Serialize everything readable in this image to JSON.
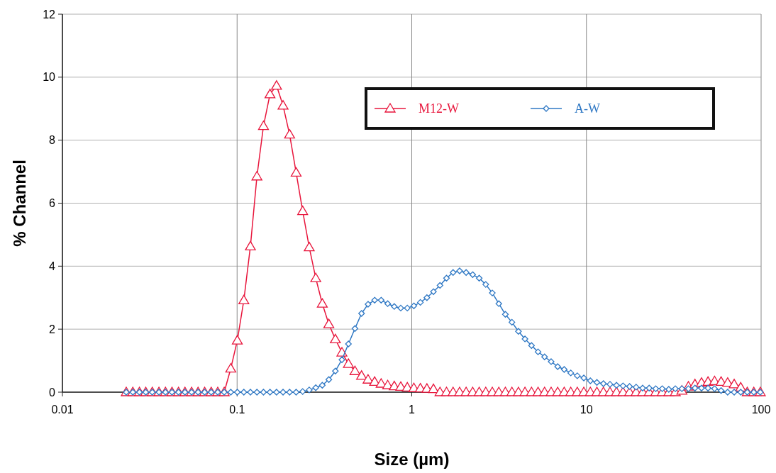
{
  "chart_data": {
    "type": "line",
    "xlabel": "Size (µm)",
    "ylabel": "% Channel",
    "x": [
      0.0232,
      0.0253,
      0.0276,
      0.03,
      0.0327,
      0.0357,
      0.0389,
      0.0424,
      0.0462,
      0.0503,
      0.0549,
      0.0598,
      0.0652,
      0.0711,
      0.0775,
      0.0844,
      0.092,
      0.1003,
      0.1093,
      0.1192,
      0.1299,
      0.1416,
      0.1543,
      0.1682,
      0.1833,
      0.1998,
      0.2178,
      0.2374,
      0.2588,
      0.2821,
      0.3075,
      0.3351,
      0.3653,
      0.3982,
      0.434,
      0.473,
      0.516,
      0.562,
      0.613,
      0.668,
      0.728,
      0.794,
      0.865,
      0.943,
      1.028,
      1.12,
      1.221,
      1.331,
      1.451,
      1.581,
      1.724,
      1.879,
      2.048,
      2.232,
      2.433,
      2.652,
      2.891,
      3.151,
      3.435,
      3.744,
      4.081,
      4.448,
      4.848,
      5.285,
      5.76,
      6.279,
      6.844,
      7.46,
      8.131,
      8.863,
      9.661,
      10.53,
      11.48,
      12.51,
      13.64,
      14.86,
      16.2,
      17.66,
      19.25,
      20.98,
      22.87,
      24.93,
      27.17,
      29.62,
      32.28,
      35.19,
      38.36,
      41.81,
      45.57,
      49.67,
      54.14,
      59.02,
      64.33,
      70.12,
      76.43,
      83.31,
      90.81,
      98.98
    ],
    "series": [
      {
        "name": "M12-W",
        "color": "#e8163c",
        "marker": "triangle",
        "values": [
          0,
          0,
          0,
          0,
          0,
          0,
          0,
          0,
          0,
          0,
          0,
          0,
          0,
          0,
          0,
          0,
          0.75,
          1.64,
          2.92,
          4.63,
          6.85,
          8.45,
          9.46,
          9.73,
          9.1,
          8.18,
          6.97,
          5.75,
          4.6,
          3.62,
          2.81,
          2.16,
          1.68,
          1.26,
          0.9,
          0.67,
          0.52,
          0.4,
          0.33,
          0.27,
          0.22,
          0.19,
          0.17,
          0.15,
          0.13,
          0.12,
          0.11,
          0.1,
          0,
          0,
          0,
          0,
          0,
          0,
          0,
          0,
          0,
          0,
          0,
          0,
          0,
          0,
          0,
          0,
          0,
          0,
          0,
          0,
          0,
          0,
          0,
          0,
          0,
          0,
          0,
          0,
          0,
          0,
          0,
          0,
          0,
          0,
          0,
          0,
          0,
          0.05,
          0.18,
          0.25,
          0.3,
          0.33,
          0.35,
          0.33,
          0.3,
          0.25,
          0.15,
          0,
          0,
          0
        ]
      },
      {
        "name": "A-W",
        "color": "#2f78c4",
        "marker": "diamond",
        "values": [
          0,
          0,
          0,
          0,
          0,
          0,
          0,
          0,
          0,
          0,
          0,
          0,
          0,
          0,
          0,
          0,
          0,
          0,
          0,
          0,
          0,
          0,
          0,
          0,
          0,
          0,
          0,
          0.02,
          0.07,
          0.14,
          0.22,
          0.4,
          0.67,
          1.03,
          1.53,
          2.02,
          2.5,
          2.79,
          2.92,
          2.92,
          2.81,
          2.72,
          2.67,
          2.67,
          2.74,
          2.85,
          3.0,
          3.19,
          3.39,
          3.62,
          3.8,
          3.85,
          3.8,
          3.73,
          3.62,
          3.42,
          3.15,
          2.81,
          2.47,
          2.22,
          1.93,
          1.69,
          1.48,
          1.28,
          1.12,
          0.97,
          0.81,
          0.72,
          0.61,
          0.52,
          0.45,
          0.36,
          0.31,
          0.27,
          0.25,
          0.22,
          0.2,
          0.18,
          0.16,
          0.13,
          0.13,
          0.11,
          0.11,
          0.09,
          0.11,
          0.11,
          0.11,
          0.13,
          0.13,
          0.13,
          0.11,
          0.05,
          0,
          0,
          0,
          0,
          0,
          0
        ]
      }
    ],
    "log": "x",
    "xlim": [
      0.01,
      100
    ],
    "xticks": [
      0.01,
      0.1,
      1,
      10,
      100
    ],
    "ylim": [
      0,
      12
    ],
    "yticks": [
      0,
      2,
      4,
      6,
      8,
      10,
      12
    ],
    "grid": true,
    "legend": "top right",
    "line_style": "solid"
  }
}
